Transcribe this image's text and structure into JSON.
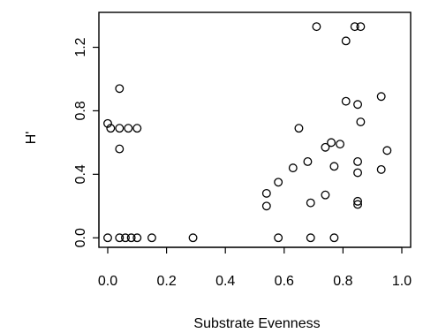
{
  "chart_data": {
    "type": "scatter",
    "title": "",
    "xlabel": "Substrate Evenness",
    "ylabel": "H'",
    "xlim": [
      -0.03,
      1.03
    ],
    "ylim": [
      -0.06,
      1.42
    ],
    "xticks": [
      0.0,
      0.2,
      0.4,
      0.6,
      0.8,
      1.0
    ],
    "xtick_labels": [
      "0.0",
      "0.2",
      "0.4",
      "0.6",
      "0.8",
      "1.0"
    ],
    "yticks": [
      0.0,
      0.4,
      0.8,
      1.2
    ],
    "ytick_labels": [
      "0.0",
      "0.4",
      "0.8",
      "1.2"
    ],
    "grid": false,
    "marker": "open-circle",
    "series": [
      {
        "points": [
          [
            0.0,
            0.0
          ],
          [
            0.04,
            0.0
          ],
          [
            0.06,
            0.0
          ],
          [
            0.08,
            0.0
          ],
          [
            0.1,
            0.0
          ],
          [
            0.15,
            0.0
          ],
          [
            0.29,
            0.0
          ],
          [
            0.58,
            0.0
          ],
          [
            0.69,
            0.0
          ],
          [
            0.77,
            0.0
          ],
          [
            0.0,
            0.72
          ],
          [
            0.01,
            0.69
          ],
          [
            0.04,
            0.69
          ],
          [
            0.07,
            0.69
          ],
          [
            0.1,
            0.69
          ],
          [
            0.04,
            0.94
          ],
          [
            0.04,
            0.56
          ],
          [
            0.54,
            0.28
          ],
          [
            0.54,
            0.2
          ],
          [
            0.58,
            0.35
          ],
          [
            0.63,
            0.44
          ],
          [
            0.65,
            0.69
          ],
          [
            0.68,
            0.48
          ],
          [
            0.69,
            0.22
          ],
          [
            0.71,
            1.33
          ],
          [
            0.74,
            0.57
          ],
          [
            0.74,
            0.27
          ],
          [
            0.76,
            0.6
          ],
          [
            0.77,
            0.45
          ],
          [
            0.79,
            0.59
          ],
          [
            0.81,
            1.24
          ],
          [
            0.81,
            0.86
          ],
          [
            0.84,
            1.33
          ],
          [
            0.85,
            0.84
          ],
          [
            0.85,
            0.48
          ],
          [
            0.85,
            0.41
          ],
          [
            0.85,
            0.23
          ],
          [
            0.85,
            0.21
          ],
          [
            0.86,
            1.33
          ],
          [
            0.86,
            0.73
          ],
          [
            0.93,
            0.89
          ],
          [
            0.93,
            0.43
          ],
          [
            0.95,
            0.55
          ]
        ]
      }
    ]
  }
}
